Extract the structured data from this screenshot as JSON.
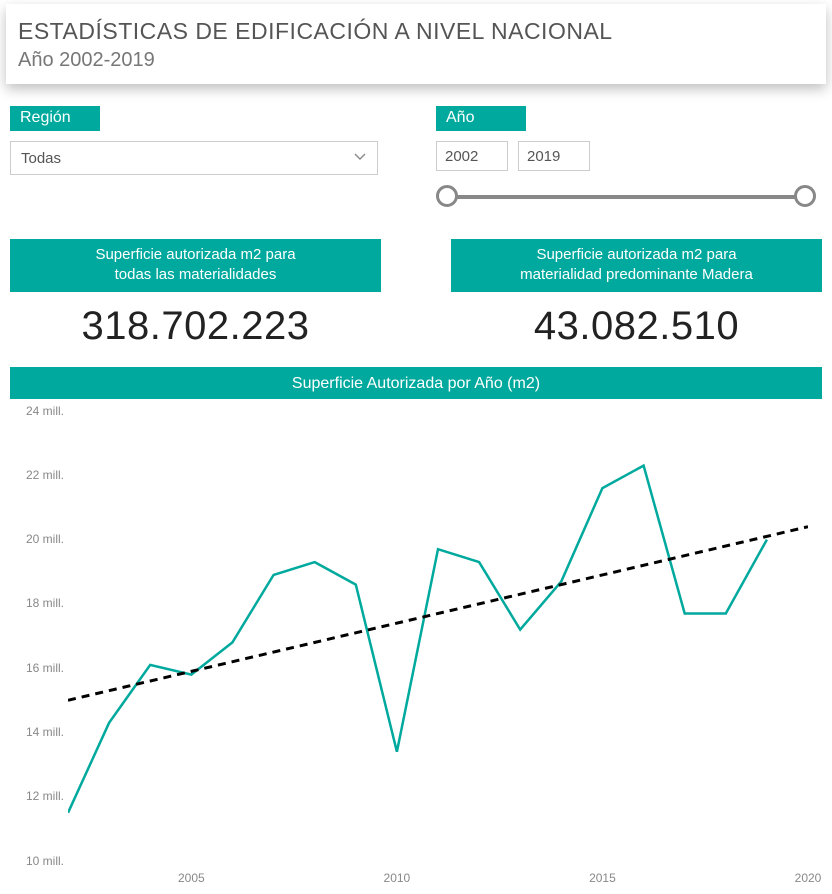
{
  "header": {
    "title": "ESTADÍSTICAS DE EDIFICACIÓN A NIVEL NACIONAL",
    "subtitle": "Año 2002-2019"
  },
  "filters": {
    "region": {
      "label": "Región",
      "selected": "Todas"
    },
    "year": {
      "label": "Año",
      "from": "2002",
      "to": "2019"
    }
  },
  "kpis": {
    "total": {
      "label_line1": "Superficie autorizada m2 para",
      "label_line2": "todas las materialidades",
      "value": "318.702.223"
    },
    "madera": {
      "label_line1": "Superficie autorizada m2 para",
      "label_line2": "materialidad predominante Madera",
      "value": "43.082.510"
    }
  },
  "chart": {
    "type": "line",
    "title": "Superficie Autorizada por Año (m2)",
    "background_color": "#ffffff",
    "series_color": "#00a99d",
    "trend_color": "#000000",
    "trend_dash": "8,6",
    "line_width": 2.5,
    "y": {
      "min": 10,
      "max": 24,
      "ticks": [
        10,
        12,
        14,
        16,
        18,
        20,
        22,
        24
      ],
      "tick_labels": [
        "10 mill.",
        "12 mill.",
        "14 mill.",
        "16 mill.",
        "18 mill.",
        "20 mill.",
        "22 mill.",
        "24 mill."
      ]
    },
    "x": {
      "min": 2002,
      "max": 2020,
      "ticks": [
        2005,
        2010,
        2015,
        2020
      ],
      "tick_labels": [
        "2005",
        "2010",
        "2015",
        "2020"
      ]
    },
    "data": {
      "years": [
        2002,
        2003,
        2004,
        2005,
        2006,
        2007,
        2008,
        2009,
        2010,
        2011,
        2012,
        2013,
        2014,
        2015,
        2016,
        2017,
        2018,
        2019
      ],
      "values": [
        11.5,
        14.3,
        16.1,
        15.8,
        16.8,
        18.9,
        19.3,
        18.6,
        13.4,
        19.7,
        19.3,
        17.2,
        18.7,
        21.6,
        22.3,
        17.7,
        17.7,
        20.0
      ]
    },
    "trend": {
      "start": [
        2002,
        15.0
      ],
      "end": [
        2020,
        20.4
      ]
    }
  },
  "colors": {
    "teal": "#00a99d",
    "text_muted": "#888888",
    "text_dark": "#333333"
  }
}
